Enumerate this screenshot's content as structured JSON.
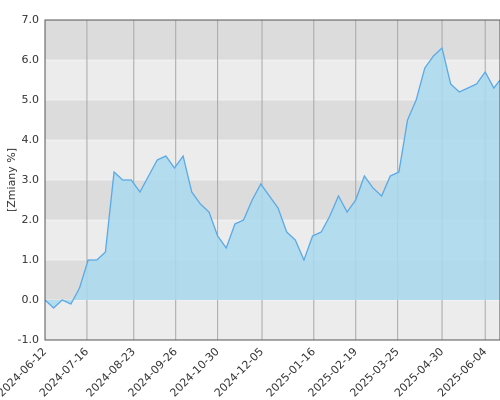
{
  "chart_data": {
    "type": "area",
    "y_label": "[Zmiany %]",
    "x": [
      "2024-06-12",
      "2024-06-19",
      "2024-06-26",
      "2024-07-03",
      "2024-07-10",
      "2024-07-17",
      "2024-07-24",
      "2024-07-31",
      "2024-08-07",
      "2024-08-14",
      "2024-08-21",
      "2024-08-28",
      "2024-09-04",
      "2024-09-11",
      "2024-09-18",
      "2024-09-25",
      "2024-10-02",
      "2024-10-09",
      "2024-10-16",
      "2024-10-23",
      "2024-10-30",
      "2024-11-06",
      "2024-11-13",
      "2024-11-20",
      "2024-11-27",
      "2024-12-04",
      "2024-12-11",
      "2024-12-18",
      "2024-12-25",
      "2025-01-01",
      "2025-01-08",
      "2025-01-15",
      "2025-01-22",
      "2025-01-29",
      "2025-02-05",
      "2025-02-12",
      "2025-02-19",
      "2025-02-26",
      "2025-03-05",
      "2025-03-12",
      "2025-03-19",
      "2025-03-26",
      "2025-04-02",
      "2025-04-09",
      "2025-04-16",
      "2025-04-23",
      "2025-04-30",
      "2025-05-07",
      "2025-05-14",
      "2025-05-21",
      "2025-05-28",
      "2025-06-04",
      "2025-06-11",
      "2025-06-16"
    ],
    "values": [
      0.0,
      -0.2,
      0.0,
      -0.1,
      0.3,
      1.0,
      1.0,
      1.2,
      3.2,
      3.0,
      3.0,
      2.7,
      3.1,
      3.5,
      3.6,
      3.3,
      3.6,
      2.7,
      2.4,
      2.2,
      1.6,
      1.3,
      1.9,
      2.0,
      2.5,
      2.9,
      2.6,
      2.3,
      1.7,
      1.5,
      1.0,
      1.6,
      1.7,
      2.1,
      2.6,
      2.2,
      2.5,
      3.1,
      2.8,
      2.6,
      3.1,
      3.2,
      4.5,
      5.0,
      5.8,
      6.1,
      6.3,
      5.4,
      5.2,
      5.3,
      5.4,
      5.7,
      5.3,
      5.5
    ],
    "color": "#5aa9e6",
    "fill": "#a9d9ef",
    "xlim": [
      "2024-06-12",
      "2025-06-16"
    ],
    "xticks": [
      "2024-06-12",
      "2024-07-16",
      "2024-08-23",
      "2024-09-26",
      "2024-10-30",
      "2024-12-05",
      "2025-01-16",
      "2025-02-19",
      "2025-03-25",
      "2025-04-30",
      "2025-06-04"
    ],
    "ylim": [
      -1,
      7
    ],
    "yticks": [
      {
        "value": -1,
        "label": "-1.0"
      },
      {
        "value": 0,
        "label": "0.0"
      },
      {
        "value": 1,
        "label": "1.0"
      },
      {
        "value": 2,
        "label": "2.0"
      },
      {
        "value": 3,
        "label": "3.0"
      },
      {
        "value": 4,
        "label": "4.0"
      },
      {
        "value": 5,
        "label": "5.0"
      },
      {
        "value": 6,
        "label": "6.0"
      },
      {
        "value": 7,
        "label": "7.0"
      }
    ],
    "grid": true
  }
}
